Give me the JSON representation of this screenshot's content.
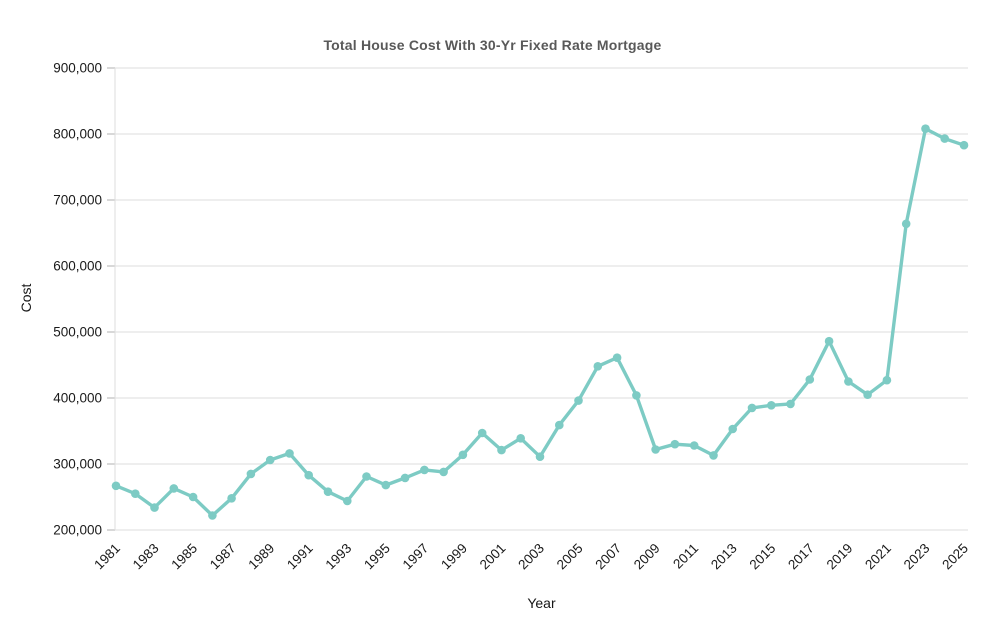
{
  "chart_data": {
    "type": "line",
    "title": "Total House Cost With 30-Yr Fixed Rate Mortgage",
    "xlabel": "Year",
    "ylabel": "Cost",
    "x": [
      1981,
      1982,
      1983,
      1984,
      1985,
      1986,
      1987,
      1988,
      1989,
      1990,
      1991,
      1992,
      1993,
      1994,
      1995,
      1996,
      1997,
      1998,
      1999,
      2000,
      2001,
      2002,
      2003,
      2004,
      2005,
      2006,
      2007,
      2008,
      2009,
      2010,
      2011,
      2012,
      2013,
      2014,
      2015,
      2016,
      2017,
      2018,
      2019,
      2020,
      2021,
      2022,
      2023,
      2024,
      2025
    ],
    "values": [
      267000,
      255000,
      234000,
      263000,
      250000,
      222000,
      248000,
      285000,
      306000,
      316000,
      283000,
      258000,
      244000,
      281000,
      268000,
      279000,
      291000,
      288000,
      314000,
      347000,
      321000,
      339000,
      311000,
      359000,
      396000,
      448000,
      461000,
      404000,
      322000,
      330000,
      328000,
      313000,
      353000,
      385000,
      389000,
      391000,
      428000,
      486000,
      425000,
      405000,
      427000,
      664000,
      808000,
      793000,
      783000
    ],
    "x_tick_labels": [
      "1981",
      "1983",
      "1985",
      "1987",
      "1989",
      "1991",
      "1993",
      "1995",
      "1997",
      "1999",
      "2001",
      "2003",
      "2005",
      "2007",
      "2009",
      "2011",
      "2013",
      "2015",
      "2017",
      "2019",
      "2021",
      "2023",
      "2025"
    ],
    "y_ticks": [
      200000,
      300000,
      400000,
      500000,
      600000,
      700000,
      800000,
      900000
    ],
    "y_tick_labels": [
      "200,000",
      "300,000",
      "400,000",
      "500,000",
      "600,000",
      "700,000",
      "800,000",
      "900,000"
    ],
    "ylim": [
      200000,
      900000
    ],
    "xlim": [
      1981,
      2025
    ],
    "grid": true,
    "legend_position": "none",
    "marker": "circle",
    "line_color": "#7dcbc4",
    "grid_color": "#dedede",
    "axis_line_color": "#dedede",
    "tick_mark_color": "#b0b0b0",
    "tick_label_color": "#1a1a1a",
    "title_color": "#595959",
    "axis_title_color": "#161616",
    "background_color": "#ffffff"
  }
}
